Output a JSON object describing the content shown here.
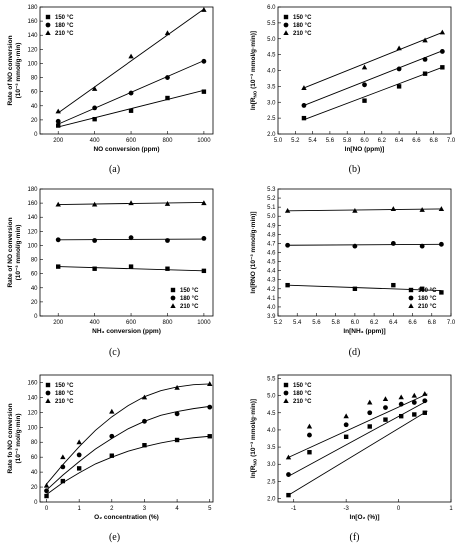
{
  "chart_data": [
    {
      "type": "line",
      "panel_label": "(a)",
      "xlabel": "NO conversion (ppm)",
      "ylabel": [
        "Rate of NO conversion",
        "(10⁻³ mmol/g·min)"
      ],
      "xlim": [
        100,
        1050
      ],
      "ylim": [
        0,
        180
      ],
      "xticks": [
        200,
        400,
        600,
        800,
        1000
      ],
      "yticks": [
        0,
        20,
        40,
        60,
        80,
        100,
        120,
        140,
        160,
        180
      ],
      "legend_position": "top-left",
      "series": [
        {
          "name": "150 °C",
          "marker": "square",
          "x": [
            200,
            400,
            600,
            800,
            1000
          ],
          "y": [
            12,
            21,
            33,
            51,
            60
          ],
          "fit": [
            [
              200,
              10
            ],
            [
              1000,
              62
            ]
          ]
        },
        {
          "name": "180 °C",
          "marker": "circle",
          "x": [
            200,
            400,
            600,
            800,
            1000
          ],
          "y": [
            18,
            37,
            58,
            80,
            103
          ],
          "fit": [
            [
              200,
              14
            ],
            [
              1000,
              104
            ]
          ]
        },
        {
          "name": "210 °C",
          "marker": "triangle",
          "x": [
            200,
            400,
            600,
            800,
            1000
          ],
          "y": [
            32,
            64,
            110,
            143,
            176
          ],
          "fit": [
            [
              200,
              30
            ],
            [
              1000,
              177
            ]
          ]
        }
      ]
    },
    {
      "type": "line",
      "panel_label": "(b)",
      "xlabel": "ln[NO (ppm)]",
      "ylabel": [
        "ln[R",
        "NO",
        "(10⁻³ mmol/g·min)]"
      ],
      "xlim": [
        5.0,
        7.0
      ],
      "ylim": [
        2.0,
        6.0
      ],
      "xticks": [
        5.0,
        5.2,
        5.4,
        5.6,
        5.8,
        6.0,
        6.2,
        6.4,
        6.6,
        6.8,
        7.0
      ],
      "yticks": [
        2.0,
        2.5,
        3.0,
        3.5,
        4.0,
        4.5,
        5.0,
        5.5,
        6.0
      ],
      "legend_position": "top-left",
      "series": [
        {
          "name": "150 °C",
          "marker": "square",
          "x": [
            5.3,
            6.0,
            6.4,
            6.7,
            6.9
          ],
          "y": [
            2.5,
            3.05,
            3.5,
            3.9,
            4.1
          ],
          "fit": [
            [
              5.3,
              2.45
            ],
            [
              6.9,
              4.1
            ]
          ]
        },
        {
          "name": "180 °C",
          "marker": "circle",
          "x": [
            5.3,
            6.0,
            6.4,
            6.7,
            6.9
          ],
          "y": [
            2.9,
            3.55,
            4.05,
            4.35,
            4.6
          ],
          "fit": [
            [
              5.3,
              2.9
            ],
            [
              6.9,
              4.62
            ]
          ]
        },
        {
          "name": "210 °C",
          "marker": "triangle",
          "x": [
            5.3,
            6.0,
            6.4,
            6.7,
            6.9
          ],
          "y": [
            3.45,
            4.1,
            4.7,
            4.95,
            5.2
          ],
          "fit": [
            [
              5.3,
              3.45
            ],
            [
              6.9,
              5.2
            ]
          ]
        }
      ]
    },
    {
      "type": "line",
      "panel_label": "(c)",
      "xlabel": "NH₃ conversion (ppm)",
      "ylabel": [
        "Rate of NO conversion",
        "(10⁻³ mmol/g·min)"
      ],
      "xlim": [
        100,
        1050
      ],
      "ylim": [
        0,
        180
      ],
      "xticks": [
        200,
        400,
        600,
        800,
        1000
      ],
      "yticks": [
        0,
        20,
        40,
        60,
        80,
        100,
        120,
        140,
        160,
        180
      ],
      "legend_position": "bottom-right",
      "series": [
        {
          "name": "150 °C",
          "marker": "square",
          "x": [
            200,
            400,
            600,
            800,
            1000
          ],
          "y": [
            70,
            67,
            70,
            67,
            64
          ],
          "fit": [
            [
              200,
              70
            ],
            [
              1000,
              64
            ]
          ]
        },
        {
          "name": "180 °C",
          "marker": "circle",
          "x": [
            200,
            400,
            600,
            800,
            1000
          ],
          "y": [
            108,
            107,
            111,
            107,
            110
          ],
          "fit": [
            [
              200,
              108
            ],
            [
              1000,
              109
            ]
          ]
        },
        {
          "name": "210 °C",
          "marker": "triangle",
          "x": [
            200,
            400,
            600,
            800,
            1000
          ],
          "y": [
            158,
            158,
            160,
            159,
            160
          ],
          "fit": [
            [
              200,
              158
            ],
            [
              1000,
              161
            ]
          ]
        }
      ]
    },
    {
      "type": "line",
      "panel_label": "(d)",
      "xlabel": "ln[NH₃ (ppm)]",
      "ylabel": [
        "ln[RNO (10⁻³ mmol/g·min)]"
      ],
      "xlim": [
        5.2,
        7.0
      ],
      "ylim": [
        3.9,
        5.3
      ],
      "xticks": [
        5.2,
        5.4,
        5.6,
        5.8,
        6.0,
        6.2,
        6.4,
        6.6,
        6.8,
        7.0
      ],
      "yticks": [
        3.9,
        4.0,
        4.1,
        4.2,
        4.3,
        4.4,
        4.5,
        4.6,
        4.7,
        4.8,
        4.9,
        5.0,
        5.1,
        5.2,
        5.3
      ],
      "legend_position": "bottom-right",
      "series": [
        {
          "name": "150 °C",
          "marker": "square",
          "x": [
            5.3,
            6.0,
            6.4,
            6.7,
            6.9
          ],
          "y": [
            4.24,
            4.2,
            4.24,
            4.2,
            4.16
          ],
          "fit": [
            [
              5.3,
              4.24
            ],
            [
              6.9,
              4.18
            ]
          ]
        },
        {
          "name": "180 °C",
          "marker": "circle",
          "x": [
            5.3,
            6.0,
            6.4,
            6.7,
            6.9
          ],
          "y": [
            4.68,
            4.67,
            4.7,
            4.67,
            4.69
          ],
          "fit": [
            [
              5.3,
              4.68
            ],
            [
              6.9,
              4.69
            ]
          ]
        },
        {
          "name": "210 °C",
          "marker": "triangle",
          "x": [
            5.3,
            6.0,
            6.4,
            6.7,
            6.9
          ],
          "y": [
            5.06,
            5.06,
            5.08,
            5.07,
            5.08
          ],
          "fit": [
            [
              5.3,
              5.06
            ],
            [
              6.9,
              5.08
            ]
          ]
        }
      ]
    },
    {
      "type": "line",
      "panel_label": "(e)",
      "xlabel": "O₂ concentration (%)",
      "ylabel": [
        "Rate fo NO conversion",
        "(10⁻³ mol/g·min)"
      ],
      "xlim": [
        -0.2,
        5.1
      ],
      "ylim": [
        0,
        170
      ],
      "xticks": [
        0,
        1,
        2,
        3,
        4,
        5
      ],
      "yticks": [
        0,
        20,
        40,
        60,
        80,
        100,
        120,
        140,
        160
      ],
      "legend_position": "top-left",
      "series": [
        {
          "name": "150 °C",
          "marker": "square",
          "x": [
            0,
            0.5,
            1,
            2,
            3,
            4,
            5
          ],
          "y": [
            8,
            28,
            45,
            62,
            76,
            83,
            88
          ],
          "fit": [
            [
              0,
              10
            ],
            [
              0.5,
              26
            ],
            [
              1,
              39
            ],
            [
              1.5,
              51
            ],
            [
              2,
              60
            ],
            [
              2.5,
              68
            ],
            [
              3,
              74
            ],
            [
              3.5,
              79
            ],
            [
              4,
              83
            ],
            [
              4.5,
              86
            ],
            [
              5,
              88
            ]
          ]
        },
        {
          "name": "180 °C",
          "marker": "circle",
          "x": [
            0,
            0.5,
            1,
            2,
            3,
            4,
            5
          ],
          "y": [
            15,
            47,
            63,
            88,
            108,
            118,
            127
          ],
          "fit": [
            [
              0,
              16
            ],
            [
              0.5,
              36
            ],
            [
              1,
              54
            ],
            [
              1.5,
              71
            ],
            [
              2,
              85
            ],
            [
              2.5,
              98
            ],
            [
              3,
              108
            ],
            [
              3.5,
              116
            ],
            [
              4,
              121
            ],
            [
              4.5,
              125
            ],
            [
              5,
              128
            ]
          ]
        },
        {
          "name": "210 °C",
          "marker": "triangle",
          "x": [
            0,
            0.5,
            1,
            2,
            3,
            4,
            5
          ],
          "y": [
            22,
            60,
            80,
            121,
            140,
            153,
            158
          ],
          "fit": [
            [
              0,
              24
            ],
            [
              0.5,
              50
            ],
            [
              1,
              74
            ],
            [
              1.5,
              96
            ],
            [
              2,
              114
            ],
            [
              2.5,
              129
            ],
            [
              3,
              141
            ],
            [
              3.5,
              149
            ],
            [
              4,
              154
            ],
            [
              4.5,
              157
            ],
            [
              5,
              158
            ]
          ]
        }
      ]
    },
    {
      "type": "line",
      "panel_label": "(f)",
      "xlabel": "ln[O₂ (%)]",
      "ylabel": [
        "ln[R",
        "NO",
        "(10⁻³ mmol/g·min)]"
      ],
      "xlim": [
        -1.3,
        2.0
      ],
      "ylim": [
        1.9,
        5.6
      ],
      "xticks": [
        -1,
        0,
        1,
        2
      ],
      "yticks": [
        2.0,
        2.5,
        3.0,
        3.5,
        4.0,
        4.5,
        5.0,
        5.5
      ],
      "tick_label_overrides": {
        "x": {
          "-1": "-1",
          "0": "-3",
          "1": "0",
          "2": "1"
        }
      },
      "legend_position": "top-left",
      "series": [
        {
          "name": "150 °C",
          "marker": "square",
          "x": [
            -1.1,
            -0.7,
            0,
            0.45,
            0.75,
            1.05,
            1.3,
            1.5
          ],
          "y": [
            2.1,
            3.35,
            3.8,
            4.1,
            4.3,
            4.4,
            4.45,
            4.5
          ],
          "fit": [
            [
              -1.1,
              2.1
            ],
            [
              1.55,
              4.55
            ]
          ]
        },
        {
          "name": "180 °C",
          "marker": "circle",
          "x": [
            -1.1,
            -0.7,
            0,
            0.45,
            0.75,
            1.05,
            1.3,
            1.5
          ],
          "y": [
            2.7,
            3.85,
            4.15,
            4.5,
            4.65,
            4.75,
            4.8,
            4.85
          ],
          "fit": [
            [
              -1.1,
              2.65
            ],
            [
              1.55,
              4.85
            ]
          ]
        },
        {
          "name": "210 °C",
          "marker": "triangle",
          "x": [
            -1.1,
            -0.7,
            0,
            0.45,
            0.75,
            1.05,
            1.3,
            1.5
          ],
          "y": [
            3.2,
            4.1,
            4.4,
            4.8,
            4.9,
            4.95,
            5.0,
            5.05
          ],
          "fit": [
            [
              -1.1,
              3.2
            ],
            [
              1.55,
              5.05
            ]
          ]
        }
      ]
    }
  ]
}
